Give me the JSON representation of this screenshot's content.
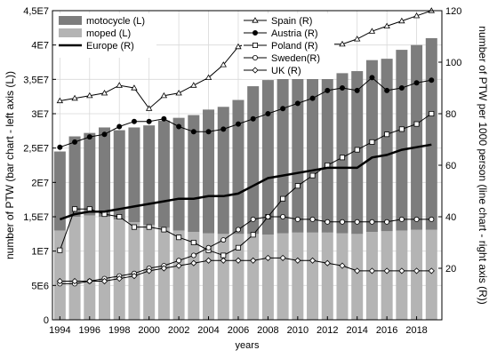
{
  "chart_data": {
    "type": "bar+line",
    "xlabel": "years",
    "ylabel_left": "number of PTW (bar chart - left axis (L))",
    "ylabel_right": "number of PTW per 1000 person (line chart - right axis (R))",
    "x_ticks": [
      "1994",
      "1996",
      "1998",
      "2000",
      "2002",
      "2004",
      "2006",
      "2008",
      "2010",
      "2012",
      "2014",
      "2016",
      "2018"
    ],
    "left_ticks": [
      "0",
      "5E6",
      "1E7",
      "1,5E7",
      "2E7",
      "2,5E7",
      "3E7",
      "3,5E7",
      "4E7",
      "4,5E7"
    ],
    "right_ticks": [
      "20",
      "40",
      "60",
      "80",
      "100",
      "120"
    ],
    "left_ylim": [
      0,
      45000000
    ],
    "right_ylim": [
      0,
      120
    ],
    "stacked_bars": {
      "years": [
        1994,
        1995,
        1996,
        1997,
        1998,
        1999,
        2000,
        2001,
        2002,
        2003,
        2004,
        2005,
        2006,
        2007,
        2008,
        2009,
        2010,
        2011,
        2012,
        2013,
        2014,
        2015,
        2016,
        2017,
        2018,
        2019
      ],
      "series": [
        {
          "name": "moped (L)",
          "color": "#b4b4b4",
          "values": [
            13000000,
            15000000,
            15200000,
            15000000,
            14600000,
            14200000,
            13800000,
            13400000,
            13000000,
            12800000,
            12600000,
            12500000,
            12500000,
            12500000,
            12400000,
            12600000,
            12700000,
            12700000,
            12700000,
            12600000,
            12500000,
            12800000,
            12900000,
            13000000,
            13100000,
            13100000
          ]
        },
        {
          "name": "motocycle (L)",
          "color": "#7d7d7d",
          "values": [
            11500000,
            11700000,
            12000000,
            13000000,
            13000000,
            13800000,
            14500000,
            15600000,
            16400000,
            17000000,
            18000000,
            18500000,
            19500000,
            21500000,
            22500000,
            22700000,
            23000000,
            23100000,
            23200000,
            23300000,
            23700000,
            25000000,
            25100000,
            26300000,
            26900000,
            27900000
          ]
        }
      ]
    },
    "line_series": [
      {
        "name": "Spain (R)",
        "marker": "triangle",
        "width": 1,
        "values": [
          85,
          86,
          87,
          88,
          91,
          90,
          82,
          87,
          88,
          91,
          94,
          99,
          106,
          108,
          108,
          108,
          108,
          108,
          107,
          107,
          109,
          112,
          114,
          116,
          118,
          120
        ]
      },
      {
        "name": "Austria (R)",
        "marker": "dot",
        "width": 1,
        "values": [
          67,
          69,
          71,
          72,
          75,
          77,
          77,
          78,
          75,
          73,
          73,
          74,
          76,
          78,
          80,
          82,
          84,
          86,
          89,
          90,
          89,
          94,
          89,
          90,
          92,
          93
        ]
      },
      {
        "name": "Poland (R)",
        "marker": "square",
        "width": 1,
        "values": [
          27,
          43,
          43,
          41,
          40,
          36,
          36,
          35,
          32,
          30,
          27,
          25,
          28,
          33,
          40,
          47,
          52,
          56,
          60,
          63,
          66,
          69,
          72,
          74,
          76,
          80
        ]
      },
      {
        "name": "Sweden(R)",
        "marker": "circle",
        "width": 1,
        "values": [
          14,
          14,
          15,
          16,
          17,
          18,
          20,
          21,
          23,
          25,
          28,
          31,
          35,
          39,
          40,
          40,
          39,
          39,
          38,
          38,
          38,
          38,
          38,
          39,
          39,
          39
        ]
      },
      {
        "name": "UK (R)",
        "marker": "diamond",
        "width": 1,
        "values": [
          15,
          15,
          15,
          15,
          16,
          17,
          19,
          20,
          21,
          22,
          23,
          23,
          23,
          23,
          24,
          24,
          23,
          23,
          22,
          21,
          19,
          19,
          19,
          19,
          19,
          19
        ]
      },
      {
        "name": "Europe (R)",
        "marker": "none",
        "width": 2.5,
        "values": [
          39,
          41,
          42,
          42,
          43,
          44,
          45,
          46,
          47,
          47,
          48,
          48,
          49,
          52,
          55,
          56,
          57,
          58,
          59,
          59,
          59,
          63,
          64,
          66,
          67,
          68
        ]
      }
    ]
  }
}
